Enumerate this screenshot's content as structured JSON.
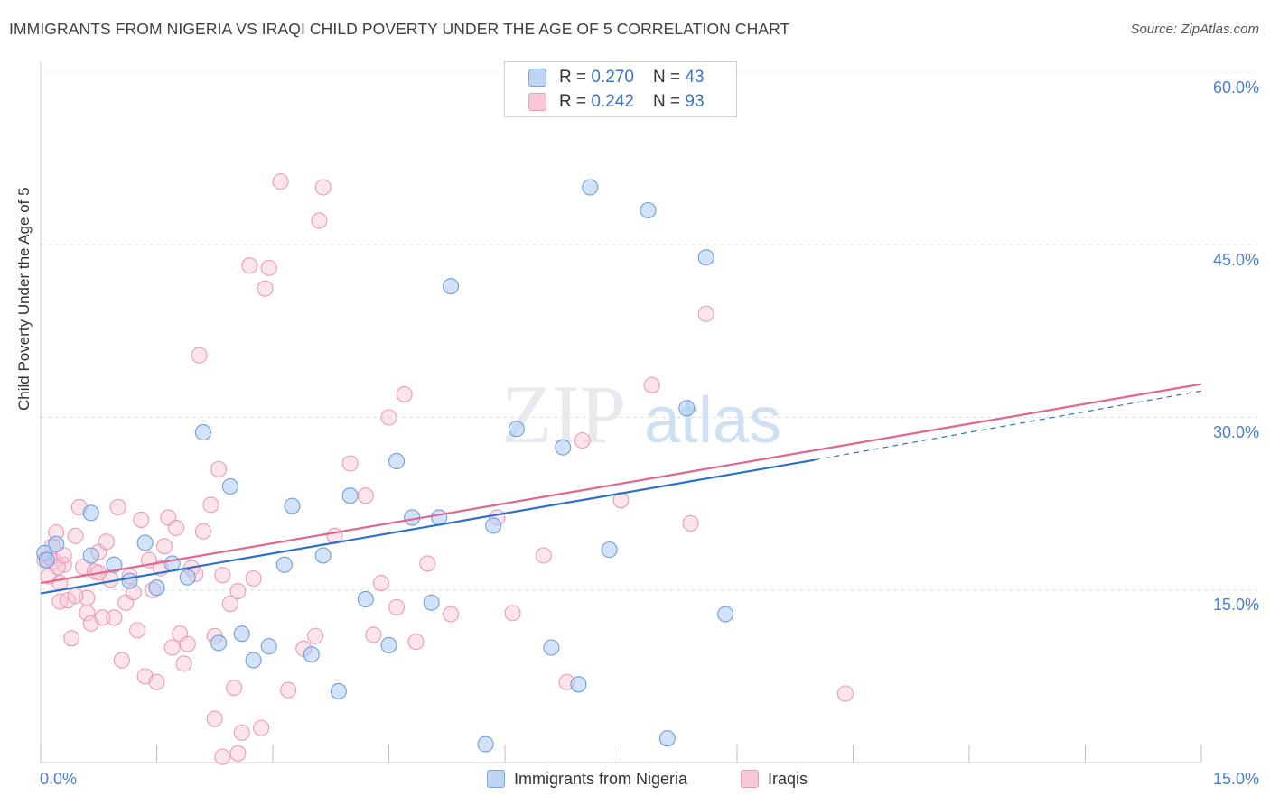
{
  "title": "IMMIGRANTS FROM NIGERIA VS IRAQI CHILD POVERTY UNDER THE AGE OF 5 CORRELATION CHART",
  "source": "Source: ZipAtlas.com",
  "watermark": {
    "zip": "ZIP",
    "atlas": "atlas"
  },
  "legend_top": [
    {
      "r_label": "R = ",
      "r_value": "0.270",
      "n_label": "N = ",
      "n_value": "43"
    },
    {
      "r_label": "R = ",
      "r_value": "0.242",
      "n_label": "N = ",
      "n_value": "93"
    }
  ],
  "chart_data": {
    "type": "scatter",
    "title": "IMMIGRANTS FROM NIGERIA VS IRAQI CHILD POVERTY UNDER THE AGE OF 5 CORRELATION CHART",
    "xlabel": "",
    "ylabel": "Child Poverty Under the Age of 5",
    "xlim": [
      0,
      15
    ],
    "ylim": [
      0,
      60
    ],
    "x_tick_labels": [
      "0.0%",
      "15.0%"
    ],
    "y_tick_labels": [
      "15.0%",
      "30.0%",
      "45.0%",
      "60.0%"
    ],
    "y_ticks": [
      15,
      30,
      45,
      60
    ],
    "grid": "horizontal dashed",
    "legend_position": "top-center",
    "colors": {
      "nigeria": "#8db5e8",
      "nigeria_line": "#2d6fcc",
      "iraqis": "#f2a6bf",
      "iraqis_line": "#e0668f",
      "tick_text": "#4a7fcf"
    },
    "series": [
      {
        "name": "Immigrants from Nigeria",
        "r": 0.27,
        "n": 43,
        "trend": {
          "x": [
            0,
            10
          ],
          "y": [
            14.7,
            26.3
          ],
          "dashed_extension_to_x": 15,
          "dashed_end_y": 32.3
        },
        "points": [
          [
            0.2,
            19.0
          ],
          [
            0.05,
            18.2
          ],
          [
            0.65,
            21.7
          ],
          [
            0.65,
            18.0
          ],
          [
            0.95,
            17.2
          ],
          [
            1.15,
            15.8
          ],
          [
            1.35,
            19.1
          ],
          [
            1.5,
            15.2
          ],
          [
            1.7,
            17.3
          ],
          [
            1.9,
            16.1
          ],
          [
            2.1,
            28.7
          ],
          [
            2.3,
            10.4
          ],
          [
            2.45,
            24.0
          ],
          [
            2.6,
            11.2
          ],
          [
            2.75,
            8.9
          ],
          [
            2.95,
            10.1
          ],
          [
            3.15,
            17.2
          ],
          [
            3.25,
            22.3
          ],
          [
            3.5,
            9.4
          ],
          [
            3.65,
            18.0
          ],
          [
            3.85,
            6.2
          ],
          [
            4.0,
            23.2
          ],
          [
            4.2,
            14.2
          ],
          [
            4.5,
            10.2
          ],
          [
            4.6,
            26.2
          ],
          [
            4.8,
            21.3
          ],
          [
            5.05,
            13.9
          ],
          [
            5.15,
            21.3
          ],
          [
            5.3,
            41.4
          ],
          [
            5.75,
            1.6
          ],
          [
            5.85,
            20.6
          ],
          [
            6.15,
            29.0
          ],
          [
            6.6,
            10.0
          ],
          [
            6.75,
            27.4
          ],
          [
            6.95,
            6.8
          ],
          [
            7.1,
            50.0
          ],
          [
            7.35,
            18.5
          ],
          [
            7.85,
            48.0
          ],
          [
            8.1,
            2.1
          ],
          [
            8.35,
            30.8
          ],
          [
            8.6,
            43.9
          ],
          [
            8.85,
            12.9
          ],
          [
            0.08,
            17.6
          ]
        ]
      },
      {
        "name": "Iraqis",
        "r": 0.242,
        "n": 93,
        "trend": {
          "x": [
            0,
            15
          ],
          "y": [
            15.6,
            32.9
          ]
        },
        "points": [
          [
            0.05,
            17.6
          ],
          [
            0.1,
            16.2
          ],
          [
            0.15,
            18.8
          ],
          [
            0.2,
            20.0
          ],
          [
            0.25,
            15.6
          ],
          [
            0.25,
            14.0
          ],
          [
            0.3,
            17.2
          ],
          [
            0.35,
            14.1
          ],
          [
            0.4,
            10.8
          ],
          [
            0.45,
            19.7
          ],
          [
            0.5,
            22.2
          ],
          [
            0.55,
            17.0
          ],
          [
            0.6,
            13.0
          ],
          [
            0.6,
            14.3
          ],
          [
            0.65,
            12.1
          ],
          [
            0.7,
            16.6
          ],
          [
            0.75,
            18.3
          ],
          [
            0.8,
            12.6
          ],
          [
            0.85,
            19.2
          ],
          [
            0.9,
            15.9
          ],
          [
            0.95,
            12.6
          ],
          [
            1.0,
            22.2
          ],
          [
            1.05,
            8.9
          ],
          [
            1.1,
            13.9
          ],
          [
            1.2,
            14.8
          ],
          [
            1.25,
            11.5
          ],
          [
            1.3,
            21.1
          ],
          [
            1.35,
            7.5
          ],
          [
            1.4,
            17.6
          ],
          [
            1.5,
            7.0
          ],
          [
            1.55,
            16.9
          ],
          [
            1.6,
            18.8
          ],
          [
            1.65,
            21.3
          ],
          [
            1.7,
            10.0
          ],
          [
            1.75,
            20.4
          ],
          [
            1.8,
            11.2
          ],
          [
            1.85,
            8.6
          ],
          [
            1.9,
            10.3
          ],
          [
            1.95,
            16.9
          ],
          [
            2.0,
            16.4
          ],
          [
            2.05,
            35.4
          ],
          [
            2.1,
            20.1
          ],
          [
            2.2,
            22.4
          ],
          [
            2.25,
            11.0
          ],
          [
            2.3,
            25.5
          ],
          [
            2.35,
            16.3
          ],
          [
            2.45,
            13.8
          ],
          [
            2.5,
            6.5
          ],
          [
            2.55,
            14.9
          ],
          [
            2.6,
            2.6
          ],
          [
            2.7,
            43.2
          ],
          [
            2.75,
            16.0
          ],
          [
            2.85,
            3.0
          ],
          [
            2.9,
            41.2
          ],
          [
            2.95,
            43.0
          ],
          [
            3.1,
            50.5
          ],
          [
            3.2,
            6.3
          ],
          [
            3.4,
            9.9
          ],
          [
            3.55,
            11.0
          ],
          [
            3.6,
            47.1
          ],
          [
            3.65,
            50.0
          ],
          [
            3.8,
            19.7
          ],
          [
            4.0,
            26.0
          ],
          [
            4.2,
            23.2
          ],
          [
            4.3,
            11.1
          ],
          [
            4.4,
            15.6
          ],
          [
            4.5,
            30.0
          ],
          [
            4.6,
            13.5
          ],
          [
            4.7,
            32.0
          ],
          [
            4.85,
            10.5
          ],
          [
            5.0,
            17.3
          ],
          [
            5.3,
            12.9
          ],
          [
            5.9,
            21.3
          ],
          [
            6.1,
            13.0
          ],
          [
            6.5,
            18.0
          ],
          [
            6.8,
            7.0
          ],
          [
            7.0,
            28.0
          ],
          [
            7.5,
            22.8
          ],
          [
            7.9,
            32.8
          ],
          [
            8.4,
            20.8
          ],
          [
            8.6,
            39.0
          ],
          [
            10.4,
            6.0
          ],
          [
            0.12,
            17.8
          ],
          [
            0.18,
            17.5
          ],
          [
            0.22,
            17.0
          ],
          [
            0.3,
            18.0
          ],
          [
            2.25,
            3.8
          ],
          [
            2.35,
            0.5
          ],
          [
            2.55,
            0.8
          ],
          [
            0.45,
            14.5
          ],
          [
            1.15,
            16.2
          ],
          [
            1.45,
            15.0
          ],
          [
            0.75,
            16.5
          ]
        ]
      }
    ]
  },
  "bottom_legend": [
    {
      "label": "Immigrants from Nigeria"
    },
    {
      "label": "Iraqis"
    }
  ],
  "axis_text": {
    "ylabel": "Child Poverty Under the Age of 5",
    "y_ticks": [
      "60.0%",
      "45.0%",
      "30.0%",
      "15.0%"
    ],
    "x_left": "0.0%",
    "x_right": "15.0%"
  }
}
